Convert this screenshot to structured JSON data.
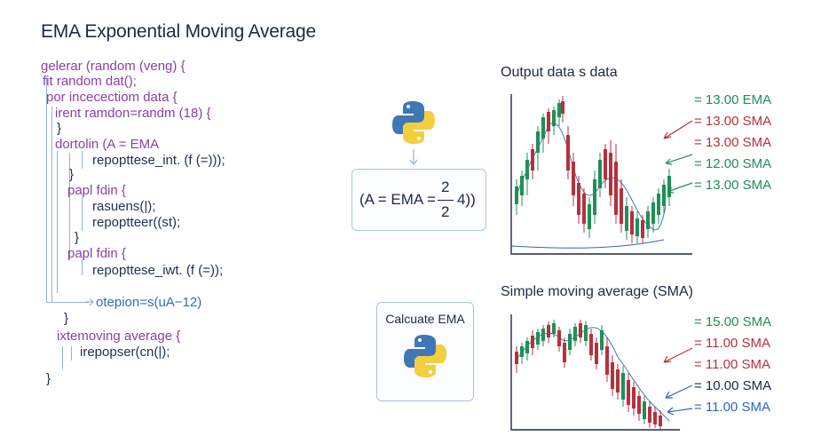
{
  "title": "EMA Exponential Moving Average",
  "code_lines": [
    {
      "text": "gelerar (random (veng) {",
      "color": "purple"
    },
    {
      "text": "fit random dat();",
      "color": "purple"
    },
    {
      "text": "por incecectiom data  {",
      "color": "purple"
    },
    {
      "text": "irent ramdon=randm (18) {",
      "color": "purple"
    },
    {
      "text": "}",
      "color": "dark"
    },
    {
      "text": "dortolin (A = EMA",
      "color": "purple"
    },
    {
      "text": "repopttese_int. (f (=)));",
      "color": "dark"
    },
    {
      "text": "}",
      "color": "dark"
    },
    {
      "text": "papl fdin {",
      "color": "purple"
    },
    {
      "text": "rasuens(|);",
      "color": "dark"
    },
    {
      "text": "repoptteer((st);",
      "color": "dark"
    },
    {
      "text": "}",
      "color": "dark"
    },
    {
      "text": "papl fdin {",
      "color": "purple"
    },
    {
      "text": "repopttese_iwt. (f (=));",
      "color": "dark"
    },
    {
      "text": "otepion=s(uA−12)",
      "color": "blue"
    },
    {
      "text": "}",
      "color": "dark"
    },
    {
      "text": "ixtemoving average {",
      "color": "purple"
    },
    {
      "text": "irepopser(cn(|);",
      "color": "dark"
    },
    {
      "text": "}",
      "color": "dark"
    }
  ],
  "formula": {
    "prefix": "(A = EMA =",
    "numerator": "2",
    "denominator": "2",
    "suffix": "4))"
  },
  "calc_box": {
    "label": "Calcuate EMA"
  },
  "icons": {
    "python": "python-logo-icon"
  },
  "colors": {
    "ema_green": "#1f8f57",
    "sma_red": "#b5313d",
    "sma_blue": "#2a66c4",
    "python_blue": "#3f78b5",
    "python_yellow": "#f3cf3e"
  },
  "top_chart": {
    "title": "Output data s data",
    "legend": [
      {
        "text": "= 13.00 EMA",
        "color": "#1f8f57"
      },
      {
        "text": "= 13.00 SMA",
        "color": "#b5313d"
      },
      {
        "text": "= 13.00 SMA",
        "color": "#b5313d"
      },
      {
        "text": "= 12.00 SMA",
        "color": "#1f8f57"
      },
      {
        "text": "= 13.00 SMA",
        "color": "#1f8f57"
      }
    ]
  },
  "bottom_chart": {
    "title": "Simple moving average (SMA)",
    "legend": [
      {
        "text": "= 15.00 SMA",
        "color": "#1f8f57"
      },
      {
        "text": "= 11.00 SMA",
        "color": "#b5313d"
      },
      {
        "text": "= 11.00 SMA",
        "color": "#b5313d"
      },
      {
        "text": "= 10.00 SMA",
        "color": "#1c2a44"
      },
      {
        "text": "= 11.00 SMA",
        "color": "#2a66c4"
      }
    ]
  }
}
